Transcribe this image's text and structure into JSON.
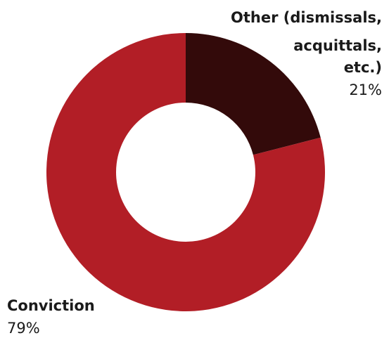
{
  "chart_data": {
    "type": "pie",
    "donut": true,
    "title": "",
    "legend": "none",
    "slices": [
      {
        "label_lines": [
          "Other (dismissals,",
          "acquittals,",
          "etc.)"
        ],
        "value": 21,
        "value_label": "21%",
        "color": "#330a0a"
      },
      {
        "label_lines": [
          "Conviction"
        ],
        "value": 79,
        "value_label": "79%",
        "color": "#b21e26"
      }
    ]
  }
}
